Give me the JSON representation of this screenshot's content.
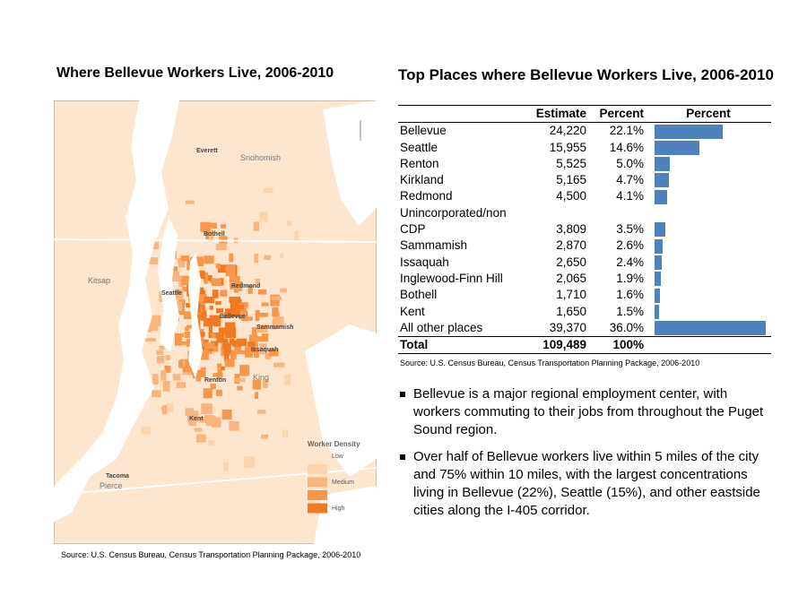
{
  "left": {
    "title": "Where Bellevue Workers Live, 2006-2010",
    "map": {
      "labels": [
        "Everett",
        "Snohomish",
        "Kitsap",
        "Bothell",
        "Seattle",
        "Redmond",
        "Bellevue",
        "Sammamish",
        "Issaquah",
        "Renton",
        "King",
        "Kent",
        "Tacoma",
        "Pierce"
      ],
      "legend": {
        "title": "Worker Density",
        "levels": [
          "Low",
          "Medium",
          "High"
        ]
      }
    },
    "source": "Source: U.S. Census Bureau, Census Transportation Planning Package, 2006-2010"
  },
  "right": {
    "title": "Top Places where Bellevue Workers Live, 2006-2010",
    "table": {
      "header": {
        "estimate": "Estimate",
        "percent": "Percent",
        "bar": "Percent"
      },
      "rows": [
        {
          "place": "Bellevue",
          "estimate": "24,220",
          "percent": 22.1,
          "percent_label": "22.1%"
        },
        {
          "place": "Seattle",
          "estimate": "15,955",
          "percent": 14.6,
          "percent_label": "14.6%"
        },
        {
          "place": "Renton",
          "estimate": "5,525",
          "percent": 5.0,
          "percent_label": "5.0%"
        },
        {
          "place": "Kirkland",
          "estimate": "5,165",
          "percent": 4.7,
          "percent_label": "4.7%"
        },
        {
          "place": "Redmond",
          "estimate": "4,500",
          "percent": 4.1,
          "percent_label": "4.1%"
        },
        {
          "place": "Unincorporated/non CDP",
          "estimate": "3,809",
          "percent": 3.5,
          "percent_label": "3.5%"
        },
        {
          "place": "Sammamish",
          "estimate": "2,870",
          "percent": 2.6,
          "percent_label": "2.6%"
        },
        {
          "place": "Issaquah",
          "estimate": "2,650",
          "percent": 2.4,
          "percent_label": "2.4%"
        },
        {
          "place": "Inglewood-Finn Hill",
          "estimate": "2,065",
          "percent": 1.9,
          "percent_label": "1.9%"
        },
        {
          "place": "Bothell",
          "estimate": "1,710",
          "percent": 1.6,
          "percent_label": "1.6%"
        },
        {
          "place": "Kent",
          "estimate": "1,650",
          "percent": 1.5,
          "percent_label": "1.5%"
        },
        {
          "place": "All other places",
          "estimate": "39,370",
          "percent": 36.0,
          "percent_label": "36.0%"
        }
      ],
      "total": {
        "place": "Total",
        "estimate": "109,489",
        "percent": "100%"
      }
    },
    "source": "Source: U.S. Census Bureau, Census Transportation Planning Package, 2006-2010",
    "bullets": [
      "Bellevue is a major regional employment center, with workers commuting to their jobs from throughout the Puget Sound region.",
      "Over half of Bellevue workers live within 5 miles of the city and 75% within 10 miles, with the largest concentrations living in Bellevue (22%), Seattle (15%), and other eastside cities along the I-405 corridor."
    ]
  }
}
